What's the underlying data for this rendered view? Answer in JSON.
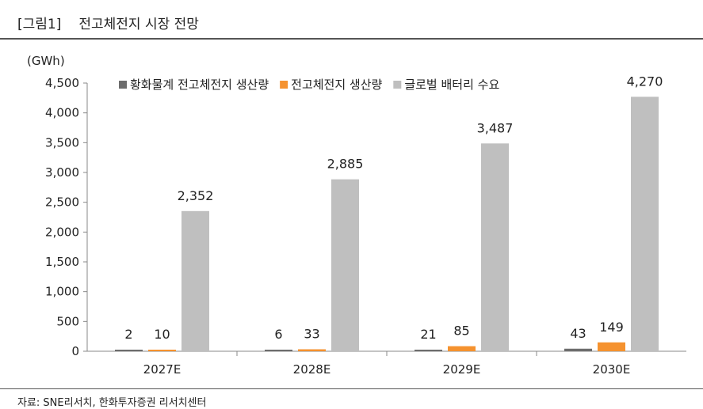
{
  "figure": {
    "tag": "[그림1]",
    "title": "전고체전지 시장 전망",
    "source": "자료: SNE리서치, 한화투자증권 리서치센터"
  },
  "chart_data": {
    "type": "bar",
    "title": "전고체전지 시장 전망",
    "ylabel": "(GWh)",
    "xlabel": "",
    "ylim": [
      0,
      4500
    ],
    "yticks": [
      0,
      500,
      1000,
      1500,
      2000,
      2500,
      3000,
      3500,
      4000,
      4500
    ],
    "categories": [
      "2027E",
      "2028E",
      "2029E",
      "2030E"
    ],
    "series": [
      {
        "name": "황화물계 전고체전지 생산량",
        "color": "#6d6d6d",
        "values": [
          2,
          6,
          21,
          43
        ],
        "labels": [
          "2",
          "6",
          "21",
          "43"
        ]
      },
      {
        "name": "전고체전지 생산량",
        "color": "#f5922f",
        "values": [
          10,
          33,
          85,
          149
        ],
        "labels": [
          "10",
          "33",
          "85",
          "149"
        ]
      },
      {
        "name": "글로벌 배터리 수요",
        "color": "#bfbfbf",
        "values": [
          2352,
          2885,
          3487,
          4270
        ],
        "labels": [
          "2,352",
          "2,885",
          "3,487",
          "4,270"
        ]
      }
    ],
    "legend_position": "top",
    "grid": false
  }
}
